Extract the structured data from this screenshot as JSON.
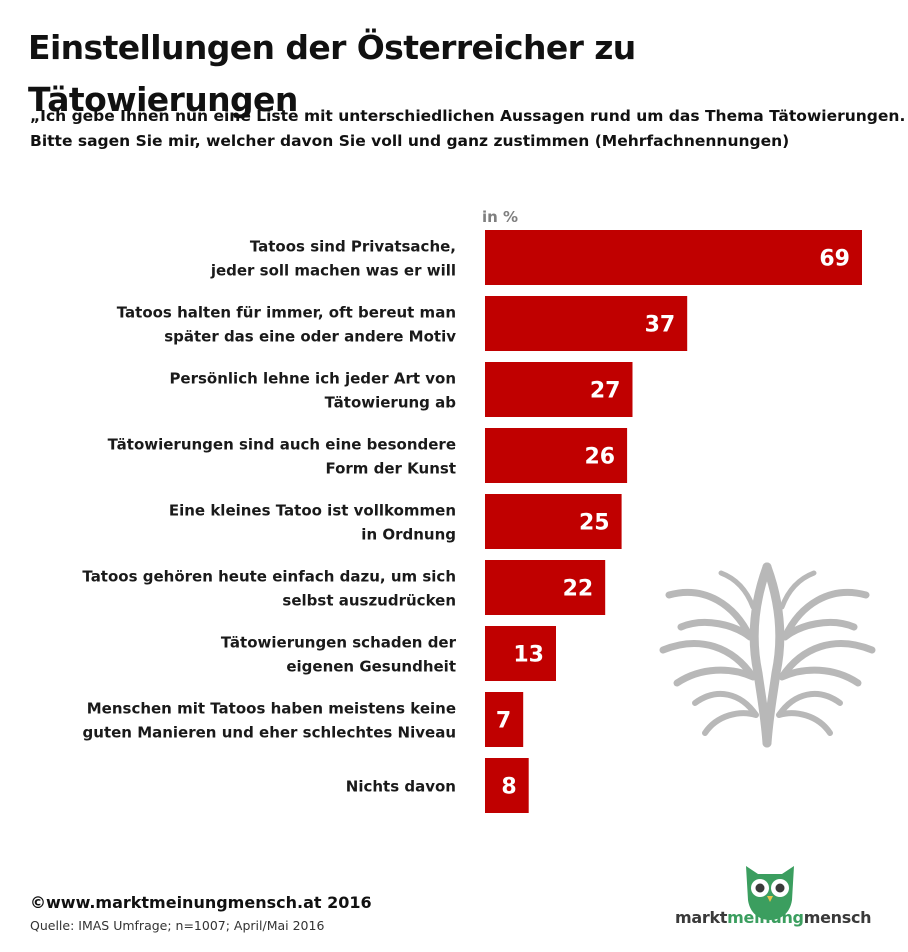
{
  "title": "Einstellungen der Österreicher zu Tätowierungen",
  "question_lines": [
    "„Ich gebe Ihnen nun eine Liste mit unterschiedlichen Aussagen rund um das Thema Tätowierungen.",
    "Bitte sagen Sie mir, welcher davon Sie voll und ganz zustimmen (Mehrfachnennungen)"
  ],
  "footer": {
    "copyright": "©www.marktmeinungmensch.at 2016",
    "source": "Quelle: IMAS Umfrage; n=1007; April/Mai 2016"
  },
  "logo": {
    "part1": "markt",
    "part2": "meinung",
    "part3": "mensch",
    "icon": "owl-icon"
  },
  "decoration": {
    "icon": "tribal-tattoo-icon"
  },
  "colors": {
    "bar": "#c00000",
    "bar_label": "#ffffff",
    "unit": "#7f7f7f",
    "logo_green": "#3b9e5f"
  },
  "chart_data": {
    "type": "bar",
    "orientation": "horizontal",
    "unit_label": "in %",
    "categories": [
      [
        "Tatoos sind Privatsache,",
        "jeder soll machen was er will"
      ],
      [
        "Tatoos halten für immer, oft bereut man",
        "später das eine oder andere Motiv"
      ],
      [
        "Persönlich lehne ich jeder Art von",
        "Tätowierung ab"
      ],
      [
        "Tätowierungen sind auch eine besondere",
        "Form der Kunst"
      ],
      [
        "Eine kleines Tatoo ist vollkommen",
        "in Ordnung"
      ],
      [
        "Tatoos gehören heute einfach dazu, um sich",
        "selbst auszudrücken"
      ],
      [
        "Tätowierungen schaden der",
        "eigenen Gesundheit"
      ],
      [
        "Menschen mit Tatoos haben meistens keine",
        "guten Manieren und eher schlechtes Niveau"
      ],
      [
        "Nichts davon"
      ]
    ],
    "values": [
      69,
      37,
      27,
      26,
      25,
      22,
      13,
      7,
      8
    ],
    "data_labels": [
      "69",
      "37",
      "27",
      "26",
      "25",
      "22",
      "13",
      "7",
      "8"
    ],
    "xlim": [
      0,
      69
    ],
    "grid": false,
    "legend": "none"
  }
}
